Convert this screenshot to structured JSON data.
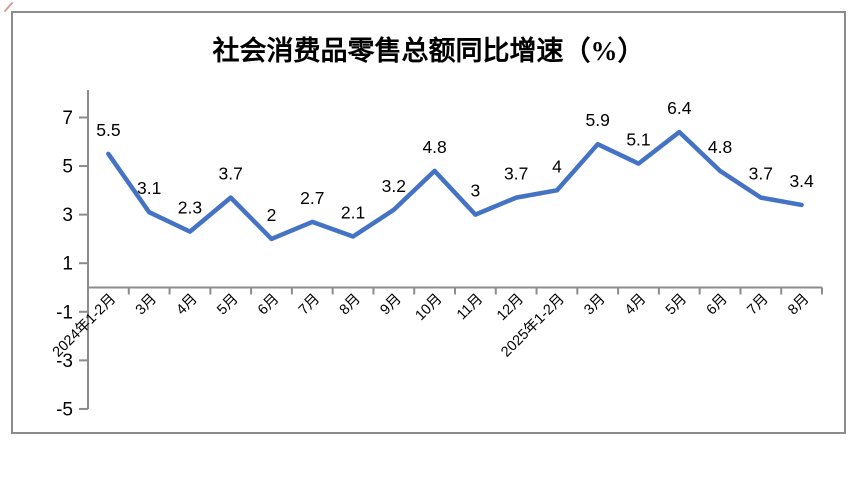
{
  "chart_data": {
    "type": "line",
    "title": "社会消费品零售总额同比增速（%）",
    "categories": [
      "2024年1-2月",
      "3月",
      "4月",
      "5月",
      "6月",
      "7月",
      "8月",
      "9月",
      "10月",
      "11月",
      "12月",
      "2025年1-2月",
      "3月",
      "4月",
      "5月",
      "6月",
      "7月",
      "8月"
    ],
    "values": [
      5.5,
      3.1,
      2.3,
      3.7,
      2,
      2.7,
      2.1,
      3.2,
      4.8,
      3,
      3.7,
      4,
      5.9,
      5.1,
      6.4,
      4.8,
      3.7,
      3.4
    ],
    "data_labels": [
      "5.5",
      "3.1",
      "2.3",
      "3.7",
      "2",
      "2.7",
      "2.1",
      "3.2",
      "4.8",
      "3",
      "3.7",
      "4",
      "5.9",
      "5.1",
      "6.4",
      "4.8",
      "3.7",
      "3.4"
    ],
    "y_axis": {
      "tick_labels": [
        7,
        5,
        3,
        1,
        -1,
        -3,
        -5
      ],
      "major_unit": 2,
      "min": -5,
      "max": 8.1
    },
    "xlabel": "",
    "ylabel": "",
    "legend_position": "none",
    "grid": false,
    "line_color": "#4472C4",
    "axis_color": "#8C8C8C",
    "text_color": "#000000"
  },
  "frame": {
    "border_color": "#8C8C8C",
    "corner_mark_color": "#CC7A7A"
  }
}
